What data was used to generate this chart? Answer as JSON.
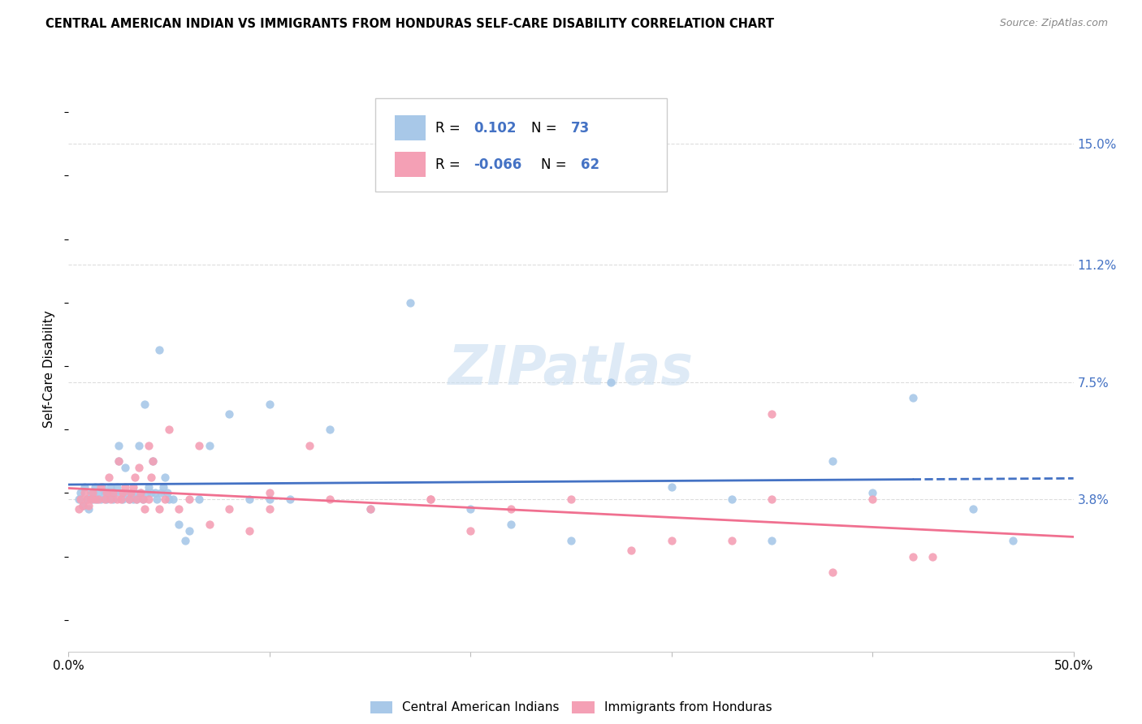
{
  "title": "CENTRAL AMERICAN INDIAN VS IMMIGRANTS FROM HONDURAS SELF-CARE DISABILITY CORRELATION CHART",
  "source": "Source: ZipAtlas.com",
  "ylabel": "Self-Care Disability",
  "yticks": [
    "15.0%",
    "11.2%",
    "7.5%",
    "3.8%"
  ],
  "ytick_vals": [
    0.15,
    0.112,
    0.075,
    0.038
  ],
  "xlim": [
    0.0,
    0.5
  ],
  "ylim": [
    -0.01,
    0.168
  ],
  "legend1_r": "0.102",
  "legend1_n": "73",
  "legend2_r": "-0.066",
  "legend2_n": "62",
  "color_blue": "#a8c8e8",
  "color_pink": "#f4a0b5",
  "line_blue": "#4472c4",
  "line_pink": "#f07090",
  "watermark": "ZIPatlas",
  "blue_scatter_x": [
    0.005,
    0.006,
    0.007,
    0.008,
    0.009,
    0.01,
    0.011,
    0.012,
    0.013,
    0.014,
    0.015,
    0.016,
    0.017,
    0.018,
    0.019,
    0.02,
    0.021,
    0.022,
    0.023,
    0.024,
    0.025,
    0.025,
    0.026,
    0.027,
    0.028,
    0.029,
    0.03,
    0.031,
    0.032,
    0.033,
    0.034,
    0.035,
    0.036,
    0.037,
    0.038,
    0.039,
    0.04,
    0.041,
    0.042,
    0.043,
    0.044,
    0.045,
    0.046,
    0.047,
    0.048,
    0.049,
    0.05,
    0.052,
    0.055,
    0.058,
    0.06,
    0.065,
    0.07,
    0.08,
    0.09,
    0.1,
    0.11,
    0.13,
    0.15,
    0.17,
    0.2,
    0.22,
    0.25,
    0.3,
    0.33,
    0.38,
    0.4,
    0.42,
    0.45,
    0.1,
    0.27,
    0.35,
    0.47
  ],
  "blue_scatter_y": [
    0.038,
    0.04,
    0.036,
    0.042,
    0.038,
    0.035,
    0.04,
    0.038,
    0.042,
    0.038,
    0.04,
    0.038,
    0.042,
    0.04,
    0.038,
    0.04,
    0.042,
    0.038,
    0.04,
    0.042,
    0.05,
    0.055,
    0.04,
    0.038,
    0.048,
    0.04,
    0.038,
    0.04,
    0.038,
    0.04,
    0.038,
    0.055,
    0.04,
    0.038,
    0.068,
    0.04,
    0.042,
    0.04,
    0.05,
    0.04,
    0.038,
    0.085,
    0.04,
    0.042,
    0.045,
    0.04,
    0.038,
    0.038,
    0.03,
    0.025,
    0.028,
    0.038,
    0.055,
    0.065,
    0.038,
    0.068,
    0.038,
    0.06,
    0.035,
    0.1,
    0.035,
    0.03,
    0.025,
    0.042,
    0.038,
    0.05,
    0.04,
    0.07,
    0.035,
    0.038,
    0.075,
    0.025,
    0.025
  ],
  "pink_scatter_x": [
    0.005,
    0.006,
    0.007,
    0.008,
    0.009,
    0.01,
    0.011,
    0.012,
    0.013,
    0.015,
    0.016,
    0.018,
    0.019,
    0.02,
    0.021,
    0.022,
    0.024,
    0.025,
    0.026,
    0.027,
    0.028,
    0.03,
    0.031,
    0.032,
    0.033,
    0.034,
    0.035,
    0.036,
    0.037,
    0.038,
    0.04,
    0.041,
    0.042,
    0.045,
    0.048,
    0.05,
    0.055,
    0.06,
    0.065,
    0.07,
    0.08,
    0.09,
    0.1,
    0.12,
    0.13,
    0.15,
    0.18,
    0.2,
    0.22,
    0.25,
    0.28,
    0.3,
    0.33,
    0.35,
    0.38,
    0.4,
    0.42,
    0.35,
    0.18,
    0.43,
    0.1,
    0.04
  ],
  "pink_scatter_y": [
    0.035,
    0.038,
    0.036,
    0.04,
    0.038,
    0.036,
    0.038,
    0.04,
    0.038,
    0.038,
    0.042,
    0.038,
    0.04,
    0.045,
    0.038,
    0.04,
    0.038,
    0.05,
    0.038,
    0.04,
    0.042,
    0.038,
    0.04,
    0.042,
    0.045,
    0.038,
    0.048,
    0.04,
    0.038,
    0.035,
    0.038,
    0.045,
    0.05,
    0.035,
    0.038,
    0.06,
    0.035,
    0.038,
    0.055,
    0.03,
    0.035,
    0.028,
    0.04,
    0.055,
    0.038,
    0.035,
    0.038,
    0.028,
    0.035,
    0.038,
    0.022,
    0.025,
    0.025,
    0.038,
    0.015,
    0.038,
    0.02,
    0.065,
    0.038,
    0.02,
    0.035,
    0.055
  ]
}
